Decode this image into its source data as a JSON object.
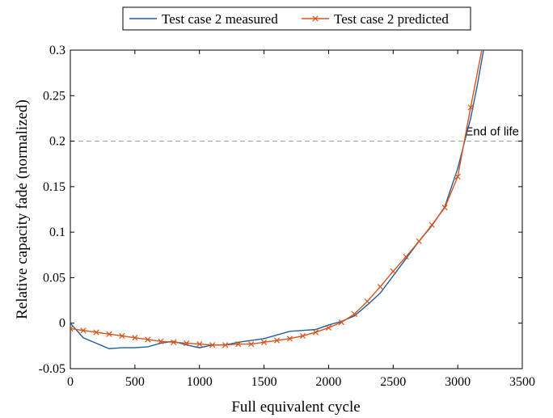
{
  "chart_data": {
    "type": "line",
    "xlabel": "Full equivalent cycle",
    "ylabel": "Relative capacity fade (normalized)",
    "xlim": [
      0,
      3500
    ],
    "ylim": [
      -0.05,
      0.3
    ],
    "xticks": [
      0,
      500,
      1000,
      1500,
      2000,
      2500,
      3000,
      3500
    ],
    "xtick_labels": [
      "0",
      "500",
      "1000",
      "1500",
      "2000",
      "2500",
      "3000",
      "3500"
    ],
    "yticks": [
      -0.05,
      0,
      0.05,
      0.1,
      0.15,
      0.2,
      0.25,
      0.3
    ],
    "ytick_labels": [
      "-0.05",
      "0",
      "0.05",
      "0.1",
      "0.15",
      "0.2",
      "0.25",
      "0.3"
    ],
    "grid": false,
    "legend_position": "top-outside",
    "series": [
      {
        "name": "Test case 2 measured",
        "color": "#1f5fa0",
        "marker": "none",
        "x": [
          0,
          100,
          200,
          300,
          400,
          500,
          600,
          700,
          800,
          900,
          1000,
          1100,
          1200,
          1300,
          1400,
          1500,
          1600,
          1700,
          1800,
          1900,
          2000,
          2100,
          2200,
          2300,
          2400,
          2500,
          2600,
          2700,
          2800,
          2900,
          3000,
          3100,
          3150,
          3200
        ],
        "values": [
          0.0,
          -0.016,
          -0.022,
          -0.028,
          -0.027,
          -0.027,
          -0.026,
          -0.022,
          -0.02,
          -0.024,
          -0.027,
          -0.024,
          -0.024,
          -0.021,
          -0.019,
          -0.017,
          -0.013,
          -0.009,
          -0.008,
          -0.007,
          -0.002,
          0.002,
          0.008,
          0.02,
          0.033,
          0.052,
          0.071,
          0.09,
          0.107,
          0.128,
          0.17,
          0.225,
          0.26,
          0.3
        ]
      },
      {
        "name": "Test case 2 predicted",
        "color": "#d95319",
        "marker": "x",
        "x": [
          0,
          100,
          200,
          300,
          400,
          500,
          600,
          700,
          800,
          900,
          1000,
          1100,
          1200,
          1300,
          1400,
          1500,
          1600,
          1700,
          1800,
          1900,
          2000,
          2100,
          2200,
          2300,
          2400,
          2500,
          2600,
          2700,
          2800,
          2900,
          3000,
          3100,
          3200
        ],
        "values": [
          -0.006,
          -0.008,
          -0.01,
          -0.012,
          -0.014,
          -0.016,
          -0.018,
          -0.02,
          -0.021,
          -0.022,
          -0.023,
          -0.024,
          -0.024,
          -0.023,
          -0.023,
          -0.021,
          -0.019,
          -0.017,
          -0.014,
          -0.01,
          -0.005,
          0.001,
          0.01,
          0.024,
          0.04,
          0.057,
          0.073,
          0.09,
          0.108,
          0.127,
          0.161,
          0.237,
          0.31
        ]
      }
    ],
    "reference_lines": [
      {
        "orientation": "horizontal",
        "y": 0.2,
        "style": "dashed",
        "color": "#999999",
        "label": "End of life"
      }
    ]
  }
}
